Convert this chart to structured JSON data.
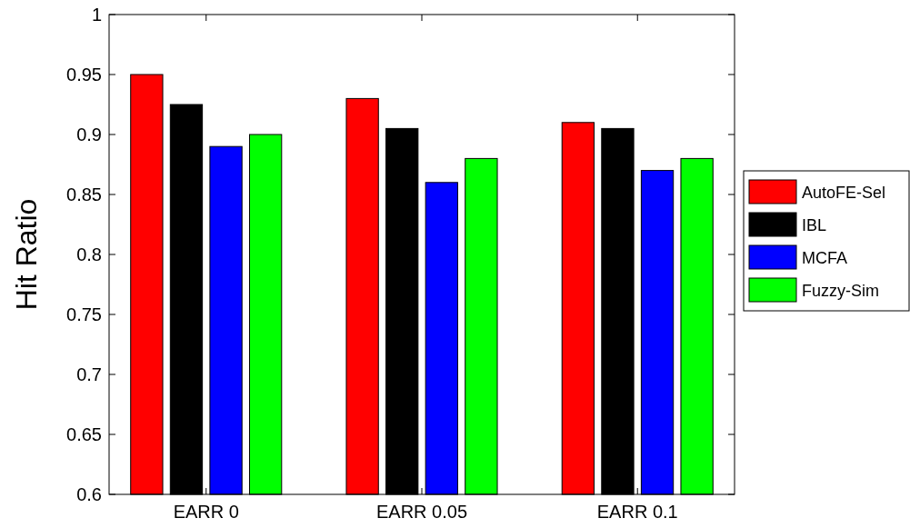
{
  "chart_data": {
    "type": "bar",
    "ylabel": "Hit Ratio",
    "categories": [
      "EARR 0",
      "EARR 0.05",
      "EARR 0.1"
    ],
    "series": [
      {
        "name": "AutoFE-Sel",
        "color": "#ff0000",
        "values": [
          0.95,
          0.93,
          0.91
        ]
      },
      {
        "name": "IBL",
        "color": "#000000",
        "values": [
          0.925,
          0.905,
          0.905
        ]
      },
      {
        "name": "MCFA",
        "color": "#0000ff",
        "values": [
          0.89,
          0.86,
          0.87
        ]
      },
      {
        "name": "Fuzzy-Sim",
        "color": "#00ff00",
        "values": [
          0.9,
          0.88,
          0.88
        ]
      }
    ],
    "ylim": [
      0.6,
      1
    ],
    "yticks": [
      0.6,
      {
        "value": 0.65,
        "label": "0.65"
      },
      {
        "value": 0.7,
        "label": "0.7"
      },
      {
        "value": 0.75,
        "label": "0.75"
      },
      {
        "value": 0.8,
        "label": "0.8"
      },
      {
        "value": 0.85,
        "label": "0.85"
      },
      {
        "value": 0.9,
        "label": "0.9"
      },
      {
        "value": 0.95,
        "label": "0.95"
      },
      1
    ],
    "legend": "right",
    "grid": false
  }
}
